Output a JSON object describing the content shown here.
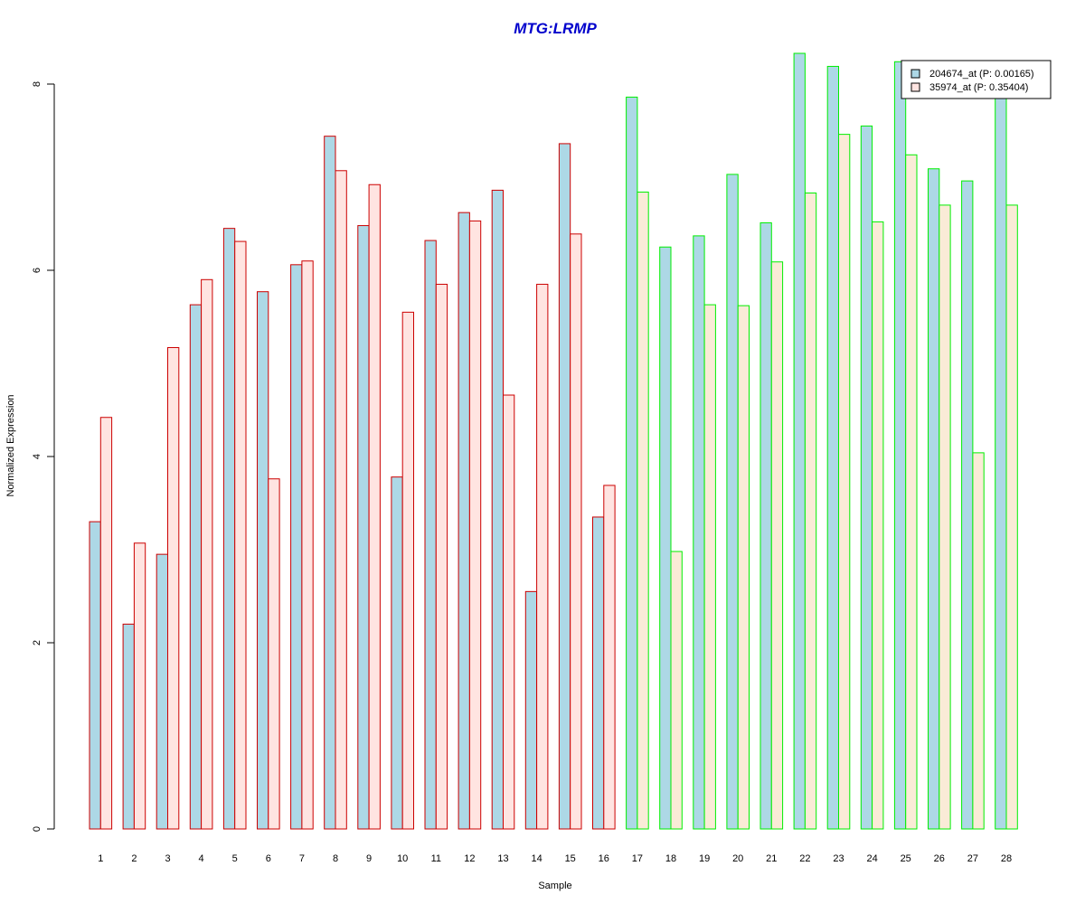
{
  "chart_data": {
    "type": "bar",
    "title": "MTG:LRMP",
    "xlabel": "Sample",
    "ylabel": "Normalized Expression",
    "ylim": [
      0,
      8.35
    ],
    "yticks": [
      0,
      2,
      4,
      6,
      8
    ],
    "grid": false,
    "legend_position": "top-right",
    "categories": [
      "1",
      "2",
      "3",
      "4",
      "5",
      "6",
      "7",
      "8",
      "9",
      "10",
      "11",
      "12",
      "13",
      "14",
      "15",
      "16",
      "17",
      "18",
      "19",
      "20",
      "21",
      "22",
      "23",
      "24",
      "25",
      "26",
      "27",
      "28"
    ],
    "series": [
      {
        "name": "204674_at (P: 0.00165)",
        "fill": "#add8e6",
        "values": [
          3.3,
          2.2,
          2.95,
          5.63,
          6.45,
          5.77,
          6.06,
          7.44,
          6.48,
          3.78,
          6.32,
          6.62,
          6.86,
          2.55,
          7.36,
          3.35,
          7.86,
          6.25,
          6.37,
          7.03,
          6.51,
          8.33,
          8.19,
          7.55,
          8.24,
          7.09,
          6.96,
          7.95
        ]
      },
      {
        "name": "35974_at (P: 0.35404)",
        "fill_group_1": "#ffe4e1",
        "fill_group_2": "#faebd7",
        "values": [
          4.42,
          3.07,
          5.17,
          5.9,
          6.31,
          3.76,
          6.1,
          7.07,
          6.92,
          5.55,
          5.85,
          6.53,
          4.66,
          5.85,
          6.39,
          3.69,
          6.84,
          2.98,
          5.63,
          5.62,
          6.09,
          6.83,
          7.46,
          6.52,
          7.24,
          6.7,
          4.04,
          6.7
        ]
      }
    ],
    "group_border_colors": [
      "#cc0000",
      "#00ee00"
    ],
    "group_sizes": [
      16,
      12
    ],
    "title_color": "#0000cc"
  }
}
